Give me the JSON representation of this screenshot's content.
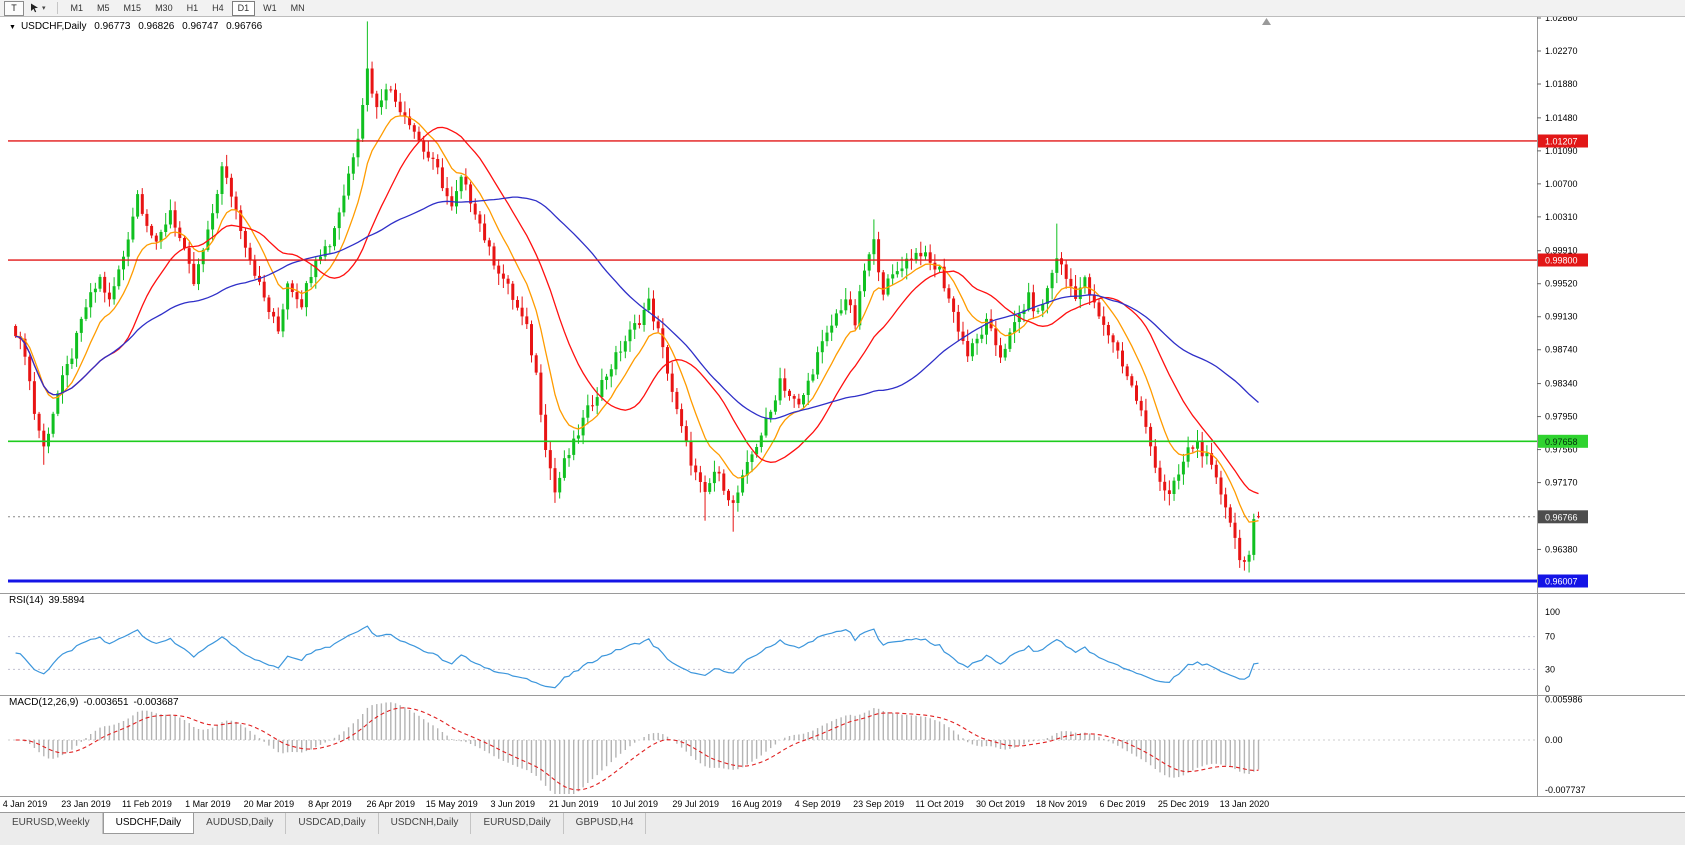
{
  "toolbar": {
    "template_button_label": "T",
    "timeframes": [
      "M1",
      "M5",
      "M15",
      "M30",
      "H1",
      "H4",
      "D1",
      "W1",
      "MN"
    ],
    "active_timeframe": "D1"
  },
  "chart": {
    "title": "USDCHF,Daily",
    "ohlc": {
      "open": "0.96773",
      "high": "0.96826",
      "low": "0.96747",
      "close": "0.96766"
    }
  },
  "indicators": {
    "rsi": {
      "label": "RSI(14)",
      "value": "39.5894",
      "scale": [
        {
          "text": "100",
          "v": 100
        },
        {
          "text": "70",
          "v": 70
        },
        {
          "text": "30",
          "v": 30
        },
        {
          "text": "0",
          "v": 0
        }
      ]
    },
    "macd": {
      "label": "MACD(12,26,9)",
      "value_main": "-0.003651",
      "value_signal": "-0.003687",
      "scale": [
        {
          "text": "0.005986",
          "v": 0.005986
        },
        {
          "text": "0.00",
          "v": 0
        },
        {
          "text": "-0.007737",
          "v": -0.007737
        }
      ]
    }
  },
  "price_scale": {
    "ticks": [
      "1.02660",
      "1.02270",
      "1.01880",
      "1.01480",
      "1.01090",
      "1.00700",
      "1.00310",
      "0.99910",
      "0.99520",
      "0.99130",
      "0.98740",
      "0.98340",
      "0.97950",
      "0.97560",
      "0.97170",
      "0.96380"
    ],
    "badges": [
      {
        "value": "1.01207",
        "price": 1.01207,
        "bg": "#e21717",
        "fg": "#ffffff",
        "name": "resistance-1"
      },
      {
        "value": "0.99800",
        "price": 0.998,
        "bg": "#e21717",
        "fg": "#ffffff",
        "name": "resistance-2"
      },
      {
        "value": "0.97658",
        "price": 0.97658,
        "bg": "#2fd32f",
        "fg": "#00320a",
        "name": "support-1"
      },
      {
        "value": "0.96766",
        "price": 0.96766,
        "bg": "#4d4d4d",
        "fg": "#ffffff",
        "name": "last-price"
      },
      {
        "value": "0.96007",
        "price": 0.96007,
        "bg": "#1414e6",
        "fg": "#ffffff",
        "name": "support-2"
      }
    ]
  },
  "x_axis": {
    "labels": [
      "4 Jan 2019",
      "23 Jan 2019",
      "11 Feb 2019",
      "1 Mar 2019",
      "20 Mar 2019",
      "8 Apr 2019",
      "26 Apr 2019",
      "15 May 2019",
      "3 Jun 2019",
      "21 Jun 2019",
      "10 Jul 2019",
      "29 Jul 2019",
      "16 Aug 2019",
      "4 Sep 2019",
      "23 Sep 2019",
      "11 Oct 2019",
      "30 Oct 2019",
      "18 Nov 2019",
      "6 Dec 2019",
      "25 Dec 2019",
      "13 Jan 2020"
    ]
  },
  "bottom_tabs": {
    "items": [
      {
        "label": "EURUSD,Weekly",
        "active": false
      },
      {
        "label": "USDCHF,Daily",
        "active": true
      },
      {
        "label": "AUDUSD,Daily",
        "active": false
      },
      {
        "label": "USDCAD,Daily",
        "active": false
      },
      {
        "label": "USDCNH,Daily",
        "active": false
      },
      {
        "label": "EURUSD,Daily",
        "active": false
      },
      {
        "label": "GBPUSD,H4",
        "active": false
      }
    ]
  },
  "chart_data": {
    "type": "candlestick",
    "symbol": "USDCHF",
    "timeframe": "Daily",
    "n_candles": 266,
    "price_range": {
      "top": 1.0266,
      "bottom": 0.96007
    },
    "bull_color": "#10c020",
    "bear_color": "#e81414",
    "close_anchors": [
      [
        0,
        0.989
      ],
      [
        2,
        0.9872
      ],
      [
        4,
        0.98
      ],
      [
        6,
        0.9758
      ],
      [
        9,
        0.9822
      ],
      [
        12,
        0.9868
      ],
      [
        15,
        0.9925
      ],
      [
        18,
        0.9958
      ],
      [
        20,
        0.993
      ],
      [
        23,
        0.9985
      ],
      [
        26,
        1.0058
      ],
      [
        28,
        1.0025
      ],
      [
        30,
        0.9995
      ],
      [
        33,
        1.004
      ],
      [
        35,
        1.0005
      ],
      [
        38,
        0.9952
      ],
      [
        41,
        1.001
      ],
      [
        44,
        1.0088
      ],
      [
        46,
        1.0058
      ],
      [
        49,
        1.0
      ],
      [
        52,
        0.995
      ],
      [
        54,
        0.992
      ],
      [
        56,
        0.9896
      ],
      [
        58,
        0.9955
      ],
      [
        61,
        0.993
      ],
      [
        64,
        0.9985
      ],
      [
        67,
        1.0
      ],
      [
        70,
        1.0058
      ],
      [
        73,
        1.013
      ],
      [
        75,
        1.0205
      ],
      [
        77,
        1.0158
      ],
      [
        79,
        1.0188
      ],
      [
        81,
        1.0168
      ],
      [
        84,
        1.0145
      ],
      [
        87,
        1.011
      ],
      [
        90,
        1.0085
      ],
      [
        93,
        1.004
      ],
      [
        95,
        1.0075
      ],
      [
        98,
        1.004
      ],
      [
        101,
        0.999
      ],
      [
        104,
        0.9958
      ],
      [
        106,
        0.9935
      ],
      [
        109,
        0.9898
      ],
      [
        111,
        0.9845
      ],
      [
        113,
        0.9762
      ],
      [
        115,
        0.9706
      ],
      [
        117,
        0.974
      ],
      [
        119,
        0.9762
      ],
      [
        121,
        0.979
      ],
      [
        124,
        0.9825
      ],
      [
        127,
        0.9855
      ],
      [
        130,
        0.9885
      ],
      [
        133,
        0.991
      ],
      [
        135,
        0.993
      ],
      [
        137,
        0.9895
      ],
      [
        139,
        0.985
      ],
      [
        141,
        0.98
      ],
      [
        143,
        0.976
      ],
      [
        145,
        0.9726
      ],
      [
        147,
        0.97
      ],
      [
        149,
        0.973
      ],
      [
        151,
        0.9714
      ],
      [
        153,
        0.969
      ],
      [
        155,
        0.972
      ],
      [
        157,
        0.975
      ],
      [
        159,
        0.9775
      ],
      [
        161,
        0.98
      ],
      [
        163,
        0.984
      ],
      [
        165,
        0.982
      ],
      [
        167,
        0.9806
      ],
      [
        169,
        0.9835
      ],
      [
        171,
        0.9868
      ],
      [
        173,
        0.989
      ],
      [
        175,
        0.9915
      ],
      [
        177,
        0.9935
      ],
      [
        179,
        0.9905
      ],
      [
        181,
        0.9968
      ],
      [
        183,
        1.0
      ],
      [
        185,
        0.9945
      ],
      [
        187,
        0.996
      ],
      [
        189,
        0.9975
      ],
      [
        191,
        0.9985
      ],
      [
        193,
        0.999
      ],
      [
        195,
        0.9975
      ],
      [
        197,
        0.9968
      ],
      [
        199,
        0.9935
      ],
      [
        201,
        0.99
      ],
      [
        203,
        0.9868
      ],
      [
        205,
        0.9885
      ],
      [
        207,
        0.9905
      ],
      [
        210,
        0.9868
      ],
      [
        212,
        0.989
      ],
      [
        214,
        0.9915
      ],
      [
        216,
        0.9935
      ],
      [
        218,
        0.9915
      ],
      [
        220,
        0.9945
      ],
      [
        222,
        0.9985
      ],
      [
        224,
        0.9958
      ],
      [
        226,
        0.994
      ],
      [
        228,
        0.9955
      ],
      [
        230,
        0.9925
      ],
      [
        232,
        0.99
      ],
      [
        234,
        0.9885
      ],
      [
        236,
        0.9858
      ],
      [
        238,
        0.983
      ],
      [
        240,
        0.98
      ],
      [
        242,
        0.976
      ],
      [
        244,
        0.972
      ],
      [
        246,
        0.97
      ],
      [
        248,
        0.9726
      ],
      [
        250,
        0.9755
      ],
      [
        252,
        0.9764
      ],
      [
        254,
        0.9745
      ],
      [
        256,
        0.9718
      ],
      [
        258,
        0.9692
      ],
      [
        259,
        0.9672
      ],
      [
        260,
        0.965
      ],
      [
        261,
        0.9632
      ],
      [
        262,
        0.9622
      ],
      [
        263,
        0.9625
      ],
      [
        264,
        0.9668
      ],
      [
        265,
        0.96766
      ]
    ],
    "wick_overrides": {
      "6": {
        "low": 0.9738
      },
      "75": {
        "high": 1.0262
      },
      "115": {
        "low": 0.9693
      },
      "147": {
        "low": 0.9672
      },
      "153": {
        "low": 0.9659
      },
      "183": {
        "high": 1.0028
      },
      "222": {
        "high": 1.0023
      },
      "246": {
        "low": 0.969
      },
      "262": {
        "low": 0.9613
      }
    },
    "last_candle": {
      "open": 0.96773,
      "high": 0.96826,
      "low": 0.96747,
      "close": 0.96766
    },
    "horizontal_lines": [
      {
        "price": 1.01207,
        "color": "#e21717",
        "width": 1.4,
        "name": "resistance-line-1"
      },
      {
        "price": 0.998,
        "color": "#e21717",
        "width": 1.4,
        "name": "resistance-line-2"
      },
      {
        "price": 0.97658,
        "color": "#1ecc1e",
        "width": 1.6,
        "name": "support-line-1"
      },
      {
        "price": 0.96007,
        "color": "#1414e6",
        "width": 3,
        "name": "support-line-2"
      }
    ],
    "moving_averages": [
      {
        "period": 10,
        "type": "ema",
        "color": "#ff9c00",
        "name": "fast-ma"
      },
      {
        "period": 21,
        "type": "sma",
        "color": "#ff1010",
        "name": "mid-ma"
      },
      {
        "period": 50,
        "type": "sma",
        "color": "#2f2fc8",
        "name": "slow-ma"
      }
    ],
    "rsi_period": 14,
    "macd_params": {
      "fast": 12,
      "slow": 26,
      "signal": 9
    }
  }
}
